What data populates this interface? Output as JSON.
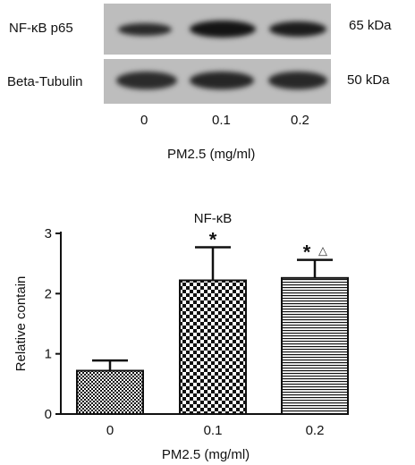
{
  "blot": {
    "rows": [
      {
        "label": "NF-κB p65",
        "size": "65 kDa"
      },
      {
        "label": "Beta-Tubulin",
        "size": "50 kDa"
      }
    ],
    "lanes": [
      "0",
      "0.1",
      "0.2"
    ],
    "xlabel": "PM2.5 (mg/ml)"
  },
  "chart_data": {
    "type": "bar",
    "title": "NF-κB",
    "categories": [
      "0",
      "0.1",
      "0.2"
    ],
    "values": [
      0.72,
      2.22,
      2.26
    ],
    "errors": [
      0.17,
      0.55,
      0.3
    ],
    "significance": [
      "",
      "*",
      "*△"
    ],
    "xlabel": "PM2.5 (mg/ml)",
    "ylabel": "Relative contain",
    "ylim": [
      0,
      3
    ],
    "yticks": [
      0,
      1,
      2,
      3
    ],
    "patterns": [
      "checker-fine",
      "checker-coarse",
      "horizontal-lines"
    ]
  }
}
